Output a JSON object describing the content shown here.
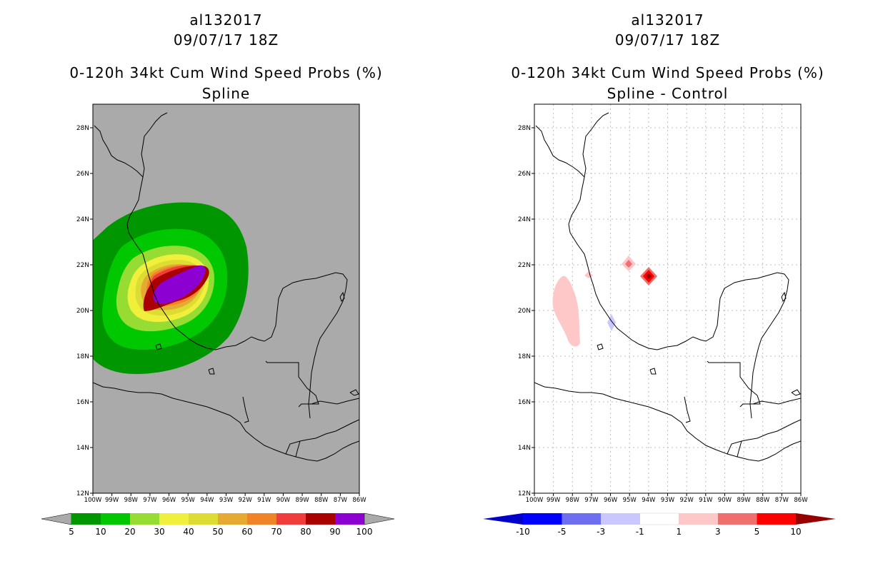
{
  "left_panel": {
    "title_storm": "al132017",
    "title_date": "09/07/17 18Z",
    "title_product": "0-120h 34kt Cum Wind Speed Probs (%)",
    "title_subtitle": "Spline",
    "background_color": "#aaaaaa",
    "colorbar": {
      "labels": [
        "5",
        "10",
        "20",
        "30",
        "40",
        "50",
        "60",
        "70",
        "80",
        "90",
        "100"
      ],
      "colors": [
        "#009600",
        "#00c800",
        "#96dc32",
        "#f0f03c",
        "#dcdc32",
        "#e6aa32",
        "#f08228",
        "#f03c3c",
        "#aa0000",
        "#8c00d2"
      ]
    }
  },
  "right_panel": {
    "title_storm": "al132017",
    "title_date": "09/07/17 18Z",
    "title_product": "0-120h 34kt Cum Wind Speed Probs (%)",
    "title_subtitle": "Spline - Control",
    "background_color": "#ffffff",
    "colorbar": {
      "labels": [
        "-10",
        "-5",
        "-3",
        "-1",
        "1",
        "3",
        "5",
        "10"
      ],
      "colors": [
        "#0000c8",
        "#0000ff",
        "#6e6ef0",
        "#c8c8ff",
        "#ffffff",
        "#ffc8c8",
        "#f06e6e",
        "#ff0000",
        "#960000"
      ]
    }
  },
  "axes": {
    "lat_labels": [
      "28N",
      "26N",
      "24N",
      "22N",
      "20N",
      "18N",
      "16N",
      "14N",
      "12N"
    ],
    "lon_labels": [
      "100W",
      "99W",
      "98W",
      "97W",
      "96W",
      "95W",
      "94W",
      "93W",
      "92W",
      "91W",
      "90W",
      "89W",
      "88W",
      "87W",
      "86W"
    ]
  }
}
